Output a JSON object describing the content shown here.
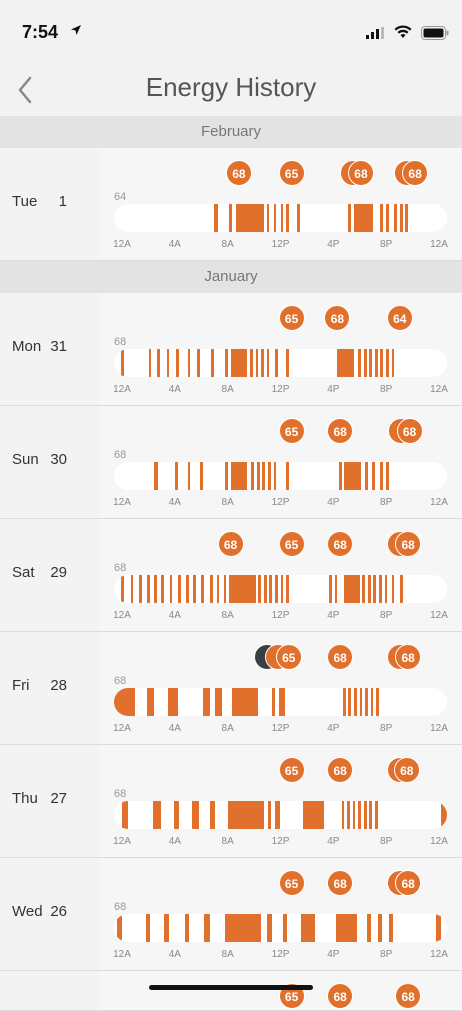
{
  "status": {
    "time": "7:54"
  },
  "nav": {
    "title": "Energy History"
  },
  "ticks": [
    "12A",
    "4A",
    "8A",
    "12P",
    "4P",
    "8P",
    "12A"
  ],
  "months": [
    {
      "name": "February",
      "days": [
        {
          "dow": "Tue",
          "num": "1",
          "temp": "64",
          "bubbles": [
            {
              "v": "68",
              "h": 9
            },
            {
              "v": "65",
              "h": 12.8
            },
            {
              "v": "6",
              "h": 17.2
            },
            {
              "v": "68",
              "h": 17.8
            },
            {
              "v": "6",
              "h": 21.1
            },
            {
              "v": "68",
              "h": 21.7
            }
          ],
          "segs": [
            [
              7.2,
              7.5
            ],
            [
              8.3,
              8.5
            ],
            [
              8.8,
              10.8
            ],
            [
              11.0,
              11.2
            ],
            [
              11.5,
              11.7
            ],
            [
              12.0,
              12.2
            ],
            [
              12.4,
              12.6
            ],
            [
              13.2,
              13.4
            ],
            [
              16.9,
              17.1
            ],
            [
              17.3,
              18.7
            ],
            [
              19.2,
              19.4
            ],
            [
              19.6,
              19.8
            ],
            [
              20.2,
              20.4
            ],
            [
              20.6,
              20.8
            ],
            [
              21.0,
              21.2
            ]
          ]
        },
        {
          "dow": "",
          "num": "",
          "temp": "",
          "bubbles": [],
          "segs": []
        }
      ]
    },
    {
      "name": "January",
      "days": [
        {
          "dow": "Mon",
          "num": "31",
          "temp": "68",
          "bubbles": [
            {
              "v": "65",
              "h": 12.8
            },
            {
              "v": "68",
              "h": 16.1
            },
            {
              "v": "64",
              "h": 20.6
            }
          ],
          "segs": [
            [
              0.5,
              0.7
            ],
            [
              2.5,
              2.7
            ],
            [
              3.1,
              3.3
            ],
            [
              3.8,
              4.0
            ],
            [
              4.5,
              4.7
            ],
            [
              5.3,
              5.5
            ],
            [
              6.0,
              6.2
            ],
            [
              7.0,
              7.2
            ],
            [
              8.0,
              8.2
            ],
            [
              8.4,
              9.6
            ],
            [
              9.8,
              10.0
            ],
            [
              10.2,
              10.4
            ],
            [
              10.6,
              10.8
            ],
            [
              11.0,
              11.2
            ],
            [
              11.6,
              11.8
            ],
            [
              12.4,
              12.6
            ],
            [
              16.1,
              17.3
            ],
            [
              17.6,
              17.8
            ],
            [
              18.0,
              18.2
            ],
            [
              18.4,
              18.6
            ],
            [
              18.8,
              19.0
            ],
            [
              19.2,
              19.4
            ],
            [
              19.6,
              19.8
            ],
            [
              20.0,
              20.2
            ]
          ]
        },
        {
          "dow": "Sun",
          "num": "30",
          "temp": "68",
          "bubbles": [
            {
              "v": "65",
              "h": 12.8
            },
            {
              "v": "68",
              "h": 16.3
            },
            {
              "v": "6",
              "h": 20.7
            },
            {
              "v": "68",
              "h": 21.3
            }
          ],
          "segs": [
            [
              2.9,
              3.2
            ],
            [
              4.4,
              4.6
            ],
            [
              5.3,
              5.5
            ],
            [
              6.2,
              6.4
            ],
            [
              8.0,
              8.2
            ],
            [
              8.4,
              9.6
            ],
            [
              9.9,
              10.1
            ],
            [
              10.3,
              10.5
            ],
            [
              10.7,
              10.9
            ],
            [
              11.1,
              11.3
            ],
            [
              11.5,
              11.7
            ],
            [
              12.4,
              12.6
            ],
            [
              16.2,
              16.4
            ],
            [
              16.6,
              17.8
            ],
            [
              18.1,
              18.3
            ],
            [
              18.6,
              18.8
            ],
            [
              19.2,
              19.4
            ],
            [
              19.6,
              19.8
            ]
          ]
        },
        {
          "dow": "Sat",
          "num": "29",
          "temp": "68",
          "bubbles": [
            {
              "v": "68",
              "h": 8.4
            },
            {
              "v": "65",
              "h": 12.8
            },
            {
              "v": "68",
              "h": 16.3
            },
            {
              "v": "6",
              "h": 20.6
            },
            {
              "v": "68",
              "h": 21.2
            }
          ],
          "segs": [
            [
              0.5,
              0.7
            ],
            [
              1.2,
              1.4
            ],
            [
              1.8,
              2.0
            ],
            [
              2.4,
              2.6
            ],
            [
              2.9,
              3.1
            ],
            [
              3.4,
              3.6
            ],
            [
              4.0,
              4.2
            ],
            [
              4.6,
              4.8
            ],
            [
              5.2,
              5.4
            ],
            [
              5.7,
              5.9
            ],
            [
              6.3,
              6.5
            ],
            [
              6.9,
              7.1
            ],
            [
              7.4,
              7.6
            ],
            [
              7.9,
              8.1
            ],
            [
              8.3,
              10.2
            ],
            [
              10.4,
              10.6
            ],
            [
              10.8,
              11.0
            ],
            [
              11.2,
              11.4
            ],
            [
              11.6,
              11.8
            ],
            [
              12.0,
              12.2
            ],
            [
              12.4,
              12.6
            ],
            [
              15.5,
              15.7
            ],
            [
              15.9,
              16.1
            ],
            [
              16.6,
              17.7
            ],
            [
              17.9,
              18.1
            ],
            [
              18.3,
              18.5
            ],
            [
              18.7,
              18.9
            ],
            [
              19.1,
              19.3
            ],
            [
              19.5,
              19.7
            ],
            [
              20.0,
              20.2
            ],
            [
              20.6,
              20.8
            ]
          ]
        },
        {
          "dow": "Fri",
          "num": "28",
          "temp": "68",
          "bubbles": [
            {
              "v": "",
              "h": 11.0,
              "eco": true
            },
            {
              "v": "",
              "h": 11.8
            },
            {
              "v": "65",
              "h": 12.6
            },
            {
              "v": "68",
              "h": 16.3
            },
            {
              "v": "6",
              "h": 20.6
            },
            {
              "v": "68",
              "h": 21.2
            }
          ],
          "segs": [
            [
              0.0,
              1.5
            ],
            [
              2.4,
              2.9
            ],
            [
              3.9,
              4.6
            ],
            [
              6.4,
              6.9
            ],
            [
              7.3,
              7.8
            ],
            [
              8.5,
              10.4
            ],
            [
              11.4,
              11.6
            ],
            [
              11.9,
              12.3
            ],
            [
              16.5,
              16.7
            ],
            [
              16.9,
              17.1
            ],
            [
              17.3,
              17.5
            ],
            [
              17.7,
              17.9
            ],
            [
              18.1,
              18.3
            ],
            [
              18.5,
              18.7
            ],
            [
              18.9,
              19.1
            ]
          ]
        },
        {
          "dow": "Thu",
          "num": "27",
          "temp": "68",
          "bubbles": [
            {
              "v": "65",
              "h": 12.8
            },
            {
              "v": "68",
              "h": 16.3
            },
            {
              "v": "6",
              "h": 20.6
            },
            {
              "v": "68",
              "h": 21.1
            }
          ],
          "segs": [
            [
              0.6,
              1.0
            ],
            [
              2.8,
              3.4
            ],
            [
              4.3,
              4.7
            ],
            [
              5.6,
              6.1
            ],
            [
              6.9,
              7.3
            ],
            [
              8.2,
              10.8
            ],
            [
              11.1,
              11.3
            ],
            [
              11.6,
              12.0
            ],
            [
              13.6,
              15.1
            ],
            [
              16.4,
              16.6
            ],
            [
              16.8,
              17.0
            ],
            [
              17.2,
              17.4
            ],
            [
              17.6,
              17.8
            ],
            [
              18.0,
              18.2
            ],
            [
              18.4,
              18.6
            ],
            [
              18.8,
              19.0
            ],
            [
              23.6,
              24.0
            ]
          ]
        },
        {
          "dow": "Wed",
          "num": "26",
          "temp": "68",
          "bubbles": [
            {
              "v": "65",
              "h": 12.8
            },
            {
              "v": "68",
              "h": 16.3
            },
            {
              "v": "6",
              "h": 20.6
            },
            {
              "v": "68",
              "h": 21.2
            }
          ],
          "segs": [
            [
              0.2,
              0.6
            ],
            [
              2.3,
              2.6
            ],
            [
              3.6,
              4.0
            ],
            [
              5.1,
              5.4
            ],
            [
              6.5,
              6.9
            ],
            [
              8.0,
              10.6
            ],
            [
              11.0,
              11.4
            ],
            [
              12.2,
              12.5
            ],
            [
              13.5,
              14.5
            ],
            [
              16.0,
              17.5
            ],
            [
              18.2,
              18.5
            ],
            [
              19.0,
              19.3
            ],
            [
              19.8,
              20.1
            ],
            [
              23.2,
              23.6
            ]
          ]
        }
      ]
    }
  ],
  "partial": {
    "bubbles": [
      {
        "v": "65",
        "h": 12.8
      },
      {
        "v": "68",
        "h": 16.3
      },
      {
        "v": "68",
        "h": 21.2
      }
    ]
  },
  "colors": {
    "accent": "#e0702b",
    "eco": "#3b3f44"
  }
}
